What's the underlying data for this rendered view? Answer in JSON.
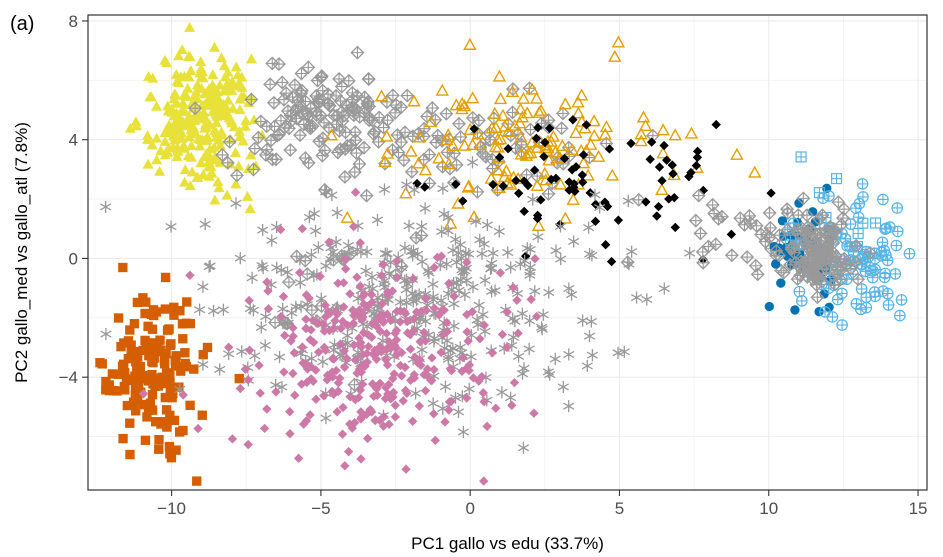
{
  "panel_label": "(a)",
  "chart_data": {
    "type": "scatter",
    "title": "",
    "xlabel": "PC1 gallo vs edu (33.7%)",
    "ylabel": "PC2 gallo_med vs gallo_atl (7.8%)",
    "xlim": [
      -12.8,
      15.3
    ],
    "ylim": [
      -7.8,
      8.2
    ],
    "x_ticks": [
      -10,
      -5,
      0,
      5,
      10,
      15
    ],
    "x_tick_labels": [
      "−10",
      "−5",
      "0",
      "5",
      "10",
      "15"
    ],
    "y_ticks": [
      -4,
      0,
      4,
      8
    ],
    "y_tick_labels": [
      "−4",
      "0",
      "4",
      "8"
    ],
    "grid": true,
    "legend": "none",
    "point_clusters": [
      {
        "shape": "triangle-filled",
        "color": "#E8E13A",
        "cx": -9.0,
        "cy": 4.8,
        "sx": 0.9,
        "sy": 1.1,
        "n": 260,
        "seed": 11
      },
      {
        "shape": "diamond-plus-open",
        "color": "#999999",
        "cx": -4.5,
        "cy": 4.6,
        "sx": 1.5,
        "sy": 0.9,
        "n": 150,
        "seed": 12
      },
      {
        "shape": "diamond-plus-open",
        "color": "#999999",
        "cx": 1.0,
        "cy": 3.8,
        "sx": 2.0,
        "sy": 0.7,
        "n": 60,
        "seed": 13
      },
      {
        "shape": "triangle-open",
        "color": "#E69F00",
        "cx": 2.0,
        "cy": 3.8,
        "sx": 2.8,
        "sy": 1.2,
        "n": 130,
        "seed": 14
      },
      {
        "shape": "diamond-filled",
        "color": "#000000",
        "cx": 4.0,
        "cy": 2.8,
        "sx": 2.5,
        "sy": 1.2,
        "n": 75,
        "seed": 15
      },
      {
        "shape": "diamond-plus-open",
        "color": "#999999",
        "cx": 9.0,
        "cy": 0.8,
        "sx": 1.6,
        "sy": 0.7,
        "n": 35,
        "seed": 16
      },
      {
        "shape": "circle-filled",
        "color": "#0072B2",
        "cx": 11.2,
        "cy": 0.0,
        "sx": 0.6,
        "sy": 0.9,
        "n": 45,
        "seed": 17
      },
      {
        "shape": "circle-plus-open",
        "color": "#56B4E9",
        "cx": 13.0,
        "cy": -0.2,
        "sx": 0.9,
        "sy": 1.0,
        "n": 90,
        "seed": 18
      },
      {
        "shape": "square-plus-open",
        "color": "#56B4E9",
        "cx": 11.8,
        "cy": 0.4,
        "sx": 0.8,
        "sy": 1.2,
        "n": 14,
        "seed": 19
      },
      {
        "shape": "diamond-plus-open",
        "color": "#999999",
        "cx": 11.6,
        "cy": 0.2,
        "sx": 0.6,
        "sy": 0.6,
        "n": 120,
        "seed": 20
      },
      {
        "shape": "square-filled",
        "color": "#D55E00",
        "cx": -10.6,
        "cy": -4.0,
        "sx": 0.8,
        "sy": 1.3,
        "n": 160,
        "seed": 21
      },
      {
        "shape": "asterisk",
        "color": "#999999",
        "cx": -1.8,
        "cy": -1.5,
        "sx": 3.4,
        "sy": 1.7,
        "n": 330,
        "seed": 22
      },
      {
        "shape": "diamond-plus-open",
        "color": "#999999",
        "cx": -4.5,
        "cy": -0.2,
        "sx": 1.5,
        "sy": 1.2,
        "n": 25,
        "seed": 23
      },
      {
        "shape": "diamond-filled",
        "color": "#CC79A7",
        "cx": -3.0,
        "cy": -3.2,
        "sx": 2.2,
        "sy": 1.6,
        "n": 330,
        "seed": 24
      }
    ]
  }
}
